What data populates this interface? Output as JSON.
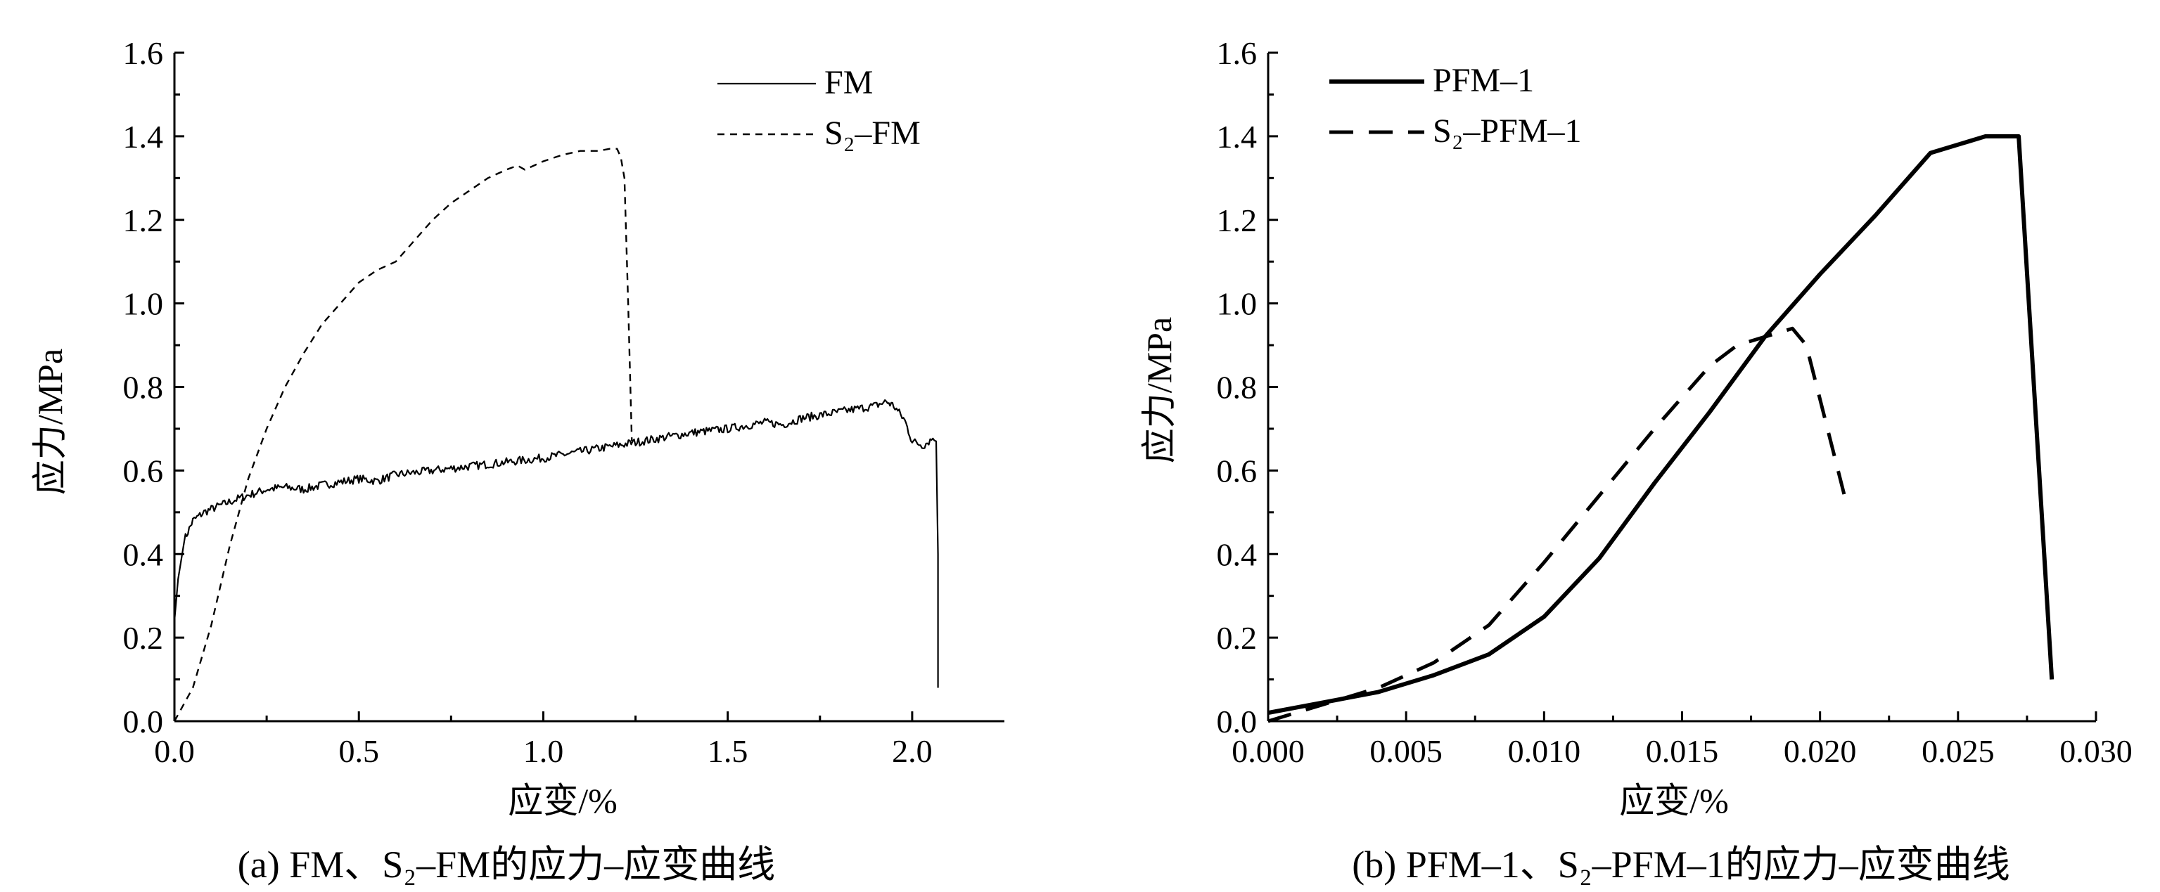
{
  "chart_data": [
    {
      "id": "a",
      "type": "line",
      "caption": "(a) FM、S₂–FM的应力–应变曲线",
      "xlabel": "应变/%",
      "ylabel": "应力/MPa",
      "xlim": [
        0,
        2.25
      ],
      "ylim": [
        0,
        1.6
      ],
      "xticks": [
        0.0,
        0.5,
        1.0,
        1.5,
        2.0
      ],
      "xtick_labels": [
        "0.0",
        "0.5",
        "1.0",
        "1.5",
        "2.0"
      ],
      "yticks": [
        0.0,
        0.2,
        0.4,
        0.6,
        0.8,
        1.0,
        1.2,
        1.4,
        1.6
      ],
      "ytick_labels": [
        "0.0",
        "0.2",
        "0.4",
        "0.6",
        "0.8",
        "1.0",
        "1.2",
        "1.4",
        "1.6"
      ],
      "legend_position": "top-right",
      "series": [
        {
          "name": "FM",
          "style": "solid-thin",
          "noisy": true,
          "x": [
            0.0,
            0.01,
            0.03,
            0.05,
            0.08,
            0.12,
            0.18,
            0.25,
            0.3,
            0.35,
            0.4,
            0.5,
            0.55,
            0.6,
            0.7,
            0.8,
            0.9,
            1.0,
            1.1,
            1.2,
            1.3,
            1.4,
            1.5,
            1.6,
            1.65,
            1.7,
            1.8,
            1.9,
            1.93,
            1.95,
            1.98,
            2.0,
            2.03,
            2.06,
            2.065,
            2.07,
            2.07
          ],
          "y": [
            0.24,
            0.35,
            0.44,
            0.48,
            0.5,
            0.515,
            0.535,
            0.555,
            0.56,
            0.555,
            0.565,
            0.58,
            0.575,
            0.59,
            0.6,
            0.61,
            0.62,
            0.63,
            0.645,
            0.66,
            0.675,
            0.69,
            0.7,
            0.715,
            0.71,
            0.725,
            0.74,
            0.755,
            0.765,
            0.755,
            0.72,
            0.67,
            0.66,
            0.68,
            0.67,
            0.4,
            0.08
          ]
        },
        {
          "name": "S₂–FM",
          "style": "dashed-thin",
          "x": [
            0.0,
            0.05,
            0.1,
            0.15,
            0.2,
            0.25,
            0.3,
            0.35,
            0.4,
            0.45,
            0.5,
            0.55,
            0.6,
            0.65,
            0.7,
            0.75,
            0.8,
            0.85,
            0.9,
            0.93,
            0.95,
            1.0,
            1.05,
            1.1,
            1.15,
            1.18,
            1.2,
            1.21,
            1.22,
            1.23,
            1.24
          ],
          "y": [
            0.0,
            0.08,
            0.23,
            0.42,
            0.58,
            0.7,
            0.8,
            0.88,
            0.95,
            1.0,
            1.05,
            1.08,
            1.1,
            1.15,
            1.2,
            1.24,
            1.27,
            1.3,
            1.32,
            1.33,
            1.32,
            1.34,
            1.355,
            1.365,
            1.365,
            1.37,
            1.37,
            1.35,
            1.3,
            1.0,
            0.67
          ]
        }
      ]
    },
    {
      "id": "b",
      "type": "line",
      "caption": "(b) PFM–1、S₂–PFM–1的应力–应变曲线",
      "xlabel": "应变/%",
      "ylabel": "应力/MPa",
      "xlim": [
        0,
        0.03
      ],
      "ylim": [
        0,
        1.6
      ],
      "xticks": [
        0.0,
        0.005,
        0.01,
        0.015,
        0.02,
        0.025,
        0.03
      ],
      "xtick_labels": [
        "0.000",
        "0.005",
        "0.010",
        "0.015",
        "0.020",
        "0.025",
        "0.030"
      ],
      "yticks": [
        0.0,
        0.2,
        0.4,
        0.6,
        0.8,
        1.0,
        1.2,
        1.4,
        1.6
      ],
      "ytick_labels": [
        "0.0",
        "0.2",
        "0.4",
        "0.6",
        "0.8",
        "1.0",
        "1.2",
        "1.4",
        "1.6"
      ],
      "legend_position": "top-left",
      "series": [
        {
          "name": "PFM–1",
          "style": "solid-thick",
          "x": [
            0.0,
            0.002,
            0.004,
            0.006,
            0.008,
            0.01,
            0.012,
            0.014,
            0.016,
            0.018,
            0.02,
            0.022,
            0.024,
            0.026,
            0.0272,
            0.0284
          ],
          "y": [
            0.02,
            0.045,
            0.07,
            0.11,
            0.16,
            0.25,
            0.39,
            0.57,
            0.74,
            0.92,
            1.07,
            1.21,
            1.36,
            1.4,
            1.4,
            0.1
          ]
        },
        {
          "name": "S₂–PFM–1",
          "style": "dashed-thick",
          "x": [
            0.0,
            0.002,
            0.004,
            0.006,
            0.008,
            0.01,
            0.012,
            0.014,
            0.016,
            0.017,
            0.018,
            0.019,
            0.0195,
            0.021
          ],
          "y": [
            0.0,
            0.04,
            0.08,
            0.14,
            0.23,
            0.38,
            0.54,
            0.7,
            0.85,
            0.9,
            0.92,
            0.94,
            0.9,
            0.51
          ]
        }
      ]
    }
  ]
}
